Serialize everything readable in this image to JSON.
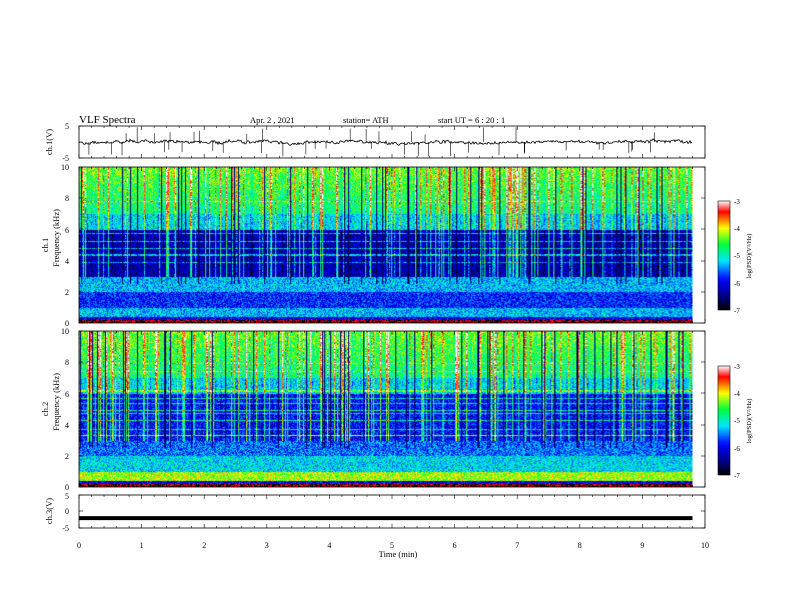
{
  "header": {
    "title": "VLF  Spectra",
    "date": "Apr. 2  , 2021",
    "station": "station= ATH",
    "start": "start  UT  =    6  : 20 : 1"
  },
  "colors": {
    "background": "#ffffff",
    "axis": "#000000",
    "trace": "#000000",
    "colormap": [
      "#000000",
      "#00007f",
      "#0000ff",
      "#00ffff",
      "#00ff00",
      "#ffff00",
      "#ff0000",
      "#ffffff"
    ]
  },
  "chart_data": [
    {
      "type": "line",
      "ylabel": "ch.1(V)",
      "ylim": [
        -5,
        5
      ],
      "yticks": [
        "5",
        "-5"
      ],
      "xlim": [
        0,
        10
      ],
      "series": [
        {
          "x_range": [
            0,
            9.8
          ],
          "baseline": 0,
          "amplitude": 0.8
        }
      ]
    },
    {
      "type": "heatmap",
      "ylabel": "Frequency (kHz)",
      "channel_label": "ch.1",
      "ylim": [
        0,
        10
      ],
      "yticks": [
        "0",
        "2",
        "4",
        "6",
        "8",
        "10"
      ],
      "xlim": [
        0,
        10
      ],
      "x_extent": [
        0,
        9.8
      ],
      "colorbar": {
        "label": "log(PSD)(V²/Hz)",
        "range": [
          -7,
          -3
        ],
        "ticks": [
          "-3",
          "-4",
          "-5",
          "-6",
          "-7"
        ]
      }
    },
    {
      "type": "heatmap",
      "ylabel": "Frequency (kHz)",
      "channel_label": "ch.2",
      "ylim": [
        0,
        10
      ],
      "yticks": [
        "0",
        "2",
        "4",
        "6",
        "8",
        "10"
      ],
      "xlim": [
        0,
        10
      ],
      "x_extent": [
        0,
        9.8
      ],
      "colorbar": {
        "label": "log(PSD)(V²/Hz)",
        "range": [
          -7,
          -3
        ],
        "ticks": [
          "-3",
          "-4",
          "-5",
          "-6",
          "-7"
        ]
      }
    },
    {
      "type": "line",
      "ylabel": "ch.3(V)",
      "ylim": [
        -5,
        5
      ],
      "yticks": [
        "5",
        "0",
        "-5"
      ],
      "xlim": [
        0,
        10
      ],
      "xlabel": "Time  (min)",
      "xticks": [
        "0",
        "1",
        "2",
        "3",
        "4",
        "5",
        "6",
        "7",
        "8",
        "9",
        "10"
      ],
      "series": [
        {
          "x_range": [
            0,
            9.8
          ],
          "value": -2
        }
      ]
    }
  ]
}
